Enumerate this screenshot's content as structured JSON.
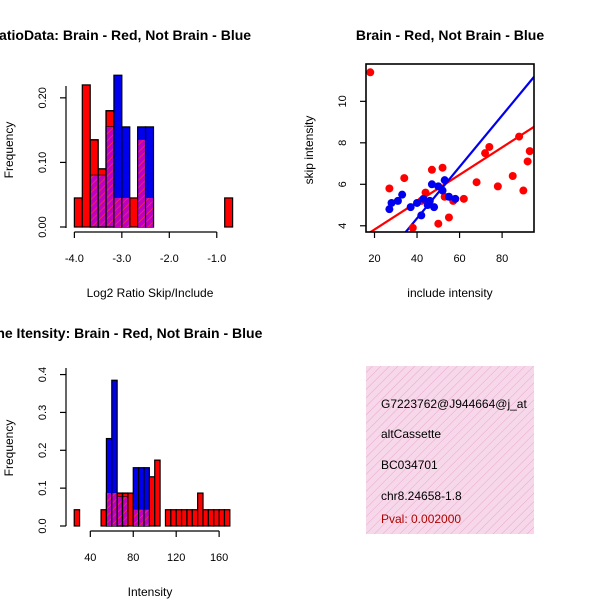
{
  "colors": {
    "red": "#ff0000",
    "blue": "#0000ee",
    "overlap": "#c000c0",
    "info_bg": "#f7d8ea",
    "info_hatch": "#e8a8cc",
    "pval": "#b00000"
  },
  "chart_data": [
    {
      "type": "bar",
      "title": "RatioData: Brain - Red, Not Brain - Blue",
      "xlabel": "Log2 Ratio Skip/Include",
      "ylabel": "Frequency",
      "xlim": [
        -4.05,
        -0.7
      ],
      "ylim": [
        0,
        0.24
      ],
      "xticks": [
        -4.0,
        -3.0,
        -2.0,
        -1.0
      ],
      "xtick_labels": [
        "-4.0",
        "-3.0",
        "-2.0",
        "-1.0"
      ],
      "yticks": [
        0.0,
        0.1,
        0.2
      ],
      "ytick_labels": [
        "0.00",
        "0.10",
        "0.20"
      ],
      "bin_width": 0.167,
      "series": [
        {
          "name": "Brain",
          "color": "red",
          "bins": [
            {
              "x0": -4.0,
              "value": 0.045
            },
            {
              "x0": -3.833,
              "value": 0.22
            },
            {
              "x0": -3.667,
              "value": 0.135
            },
            {
              "x0": -3.5,
              "value": 0.09
            },
            {
              "x0": -3.333,
              "value": 0.18
            },
            {
              "x0": -3.167,
              "value": 0.045
            },
            {
              "x0": -3.0,
              "value": 0.045
            },
            {
              "x0": -2.833,
              "value": 0.045
            },
            {
              "x0": -2.667,
              "value": 0.135
            },
            {
              "x0": -2.5,
              "value": 0.045
            },
            {
              "x0": -0.833,
              "value": 0.045
            }
          ]
        },
        {
          "name": "Not Brain",
          "color": "blue",
          "bins": [
            {
              "x0": -3.667,
              "value": 0.08
            },
            {
              "x0": -3.5,
              "value": 0.08
            },
            {
              "x0": -3.333,
              "value": 0.155
            },
            {
              "x0": -3.167,
              "value": 0.235
            },
            {
              "x0": -3.0,
              "value": 0.155
            },
            {
              "x0": -2.667,
              "value": 0.155
            },
            {
              "x0": -2.5,
              "value": 0.155
            }
          ]
        }
      ]
    },
    {
      "type": "scatter",
      "title": "Brain - Red, Not Brain - Blue",
      "xlabel": "include intensity",
      "ylabel": "skip intensity",
      "xlim": [
        16,
        95
      ],
      "ylim": [
        3.7,
        11.8
      ],
      "xticks": [
        20,
        40,
        60,
        80
      ],
      "xtick_labels": [
        "20",
        "40",
        "60",
        "80"
      ],
      "yticks": [
        4,
        6,
        8,
        10
      ],
      "ytick_labels": [
        "4",
        "6",
        "8",
        "10"
      ],
      "series": [
        {
          "name": "Brain",
          "color": "red",
          "x": [
            18,
            27,
            34,
            38,
            42,
            44,
            47,
            50,
            52,
            53,
            55,
            57,
            62,
            68,
            72,
            74,
            78,
            85,
            88,
            90,
            92,
            93
          ],
          "y": [
            11.4,
            5.8,
            6.3,
            3.9,
            5.2,
            5.6,
            6.7,
            4.1,
            6.8,
            5.4,
            4.4,
            5.2,
            5.3,
            6.1,
            7.5,
            7.8,
            5.9,
            6.4,
            8.3,
            5.7,
            7.1,
            7.6
          ],
          "fit": {
            "slope": 0.066,
            "intercept": 2.5
          }
        },
        {
          "name": "Not Brain",
          "color": "blue",
          "x": [
            27,
            28,
            31,
            33,
            37,
            40,
            42,
            43,
            45,
            46,
            47,
            48,
            50,
            52,
            53,
            55,
            58
          ],
          "y": [
            4.8,
            5.1,
            5.2,
            5.5,
            4.9,
            5.1,
            4.5,
            5.3,
            5.0,
            5.2,
            6.0,
            4.9,
            5.9,
            5.7,
            6.2,
            5.4,
            5.3
          ],
          "fit": {
            "slope": 0.124,
            "intercept": -0.6
          }
        }
      ]
    },
    {
      "type": "bar",
      "title": "Gene Itensity: Brain - Red, Not Brain - Blue",
      "xlabel": "Intensity",
      "ylabel": "Frequency",
      "xlim": [
        22,
        172
      ],
      "ylim": [
        0,
        0.42
      ],
      "xticks": [
        40,
        80,
        120,
        160
      ],
      "xtick_labels": [
        "40",
        "80",
        "120",
        "160"
      ],
      "yticks": [
        0.0,
        0.1,
        0.2,
        0.3,
        0.4
      ],
      "ytick_labels": [
        "0.0",
        "0.1",
        "0.2",
        "0.3",
        "0.4"
      ],
      "bin_width": 5,
      "series": [
        {
          "name": "Brain",
          "color": "red",
          "bins": [
            {
              "x0": 25,
              "value": 0.043
            },
            {
              "x0": 50,
              "value": 0.043
            },
            {
              "x0": 55,
              "value": 0.087
            },
            {
              "x0": 60,
              "value": 0.087
            },
            {
              "x0": 65,
              "value": 0.087
            },
            {
              "x0": 70,
              "value": 0.087
            },
            {
              "x0": 75,
              "value": 0.087
            },
            {
              "x0": 80,
              "value": 0.043
            },
            {
              "x0": 85,
              "value": 0.043
            },
            {
              "x0": 90,
              "value": 0.043
            },
            {
              "x0": 95,
              "value": 0.13
            },
            {
              "x0": 100,
              "value": 0.174
            },
            {
              "x0": 110,
              "value": 0.043
            },
            {
              "x0": 115,
              "value": 0.043
            },
            {
              "x0": 120,
              "value": 0.043
            },
            {
              "x0": 125,
              "value": 0.043
            },
            {
              "x0": 130,
              "value": 0.043
            },
            {
              "x0": 135,
              "value": 0.043
            },
            {
              "x0": 140,
              "value": 0.087
            },
            {
              "x0": 145,
              "value": 0.043
            },
            {
              "x0": 150,
              "value": 0.043
            },
            {
              "x0": 155,
              "value": 0.043
            },
            {
              "x0": 160,
              "value": 0.043
            },
            {
              "x0": 165,
              "value": 0.043
            }
          ]
        },
        {
          "name": "Not Brain",
          "color": "blue",
          "bins": [
            {
              "x0": 55,
              "value": 0.231
            },
            {
              "x0": 60,
              "value": 0.385
            },
            {
              "x0": 65,
              "value": 0.077
            },
            {
              "x0": 70,
              "value": 0.077
            },
            {
              "x0": 80,
              "value": 0.154
            },
            {
              "x0": 85,
              "value": 0.154
            },
            {
              "x0": 90,
              "value": 0.154
            }
          ]
        }
      ]
    }
  ],
  "info_box": {
    "lines": [
      "G7223762@J944664@j_at",
      "altCassette",
      "BC034701",
      "chr8.24658-1.8"
    ],
    "pval": "Pval: 0.002000"
  }
}
